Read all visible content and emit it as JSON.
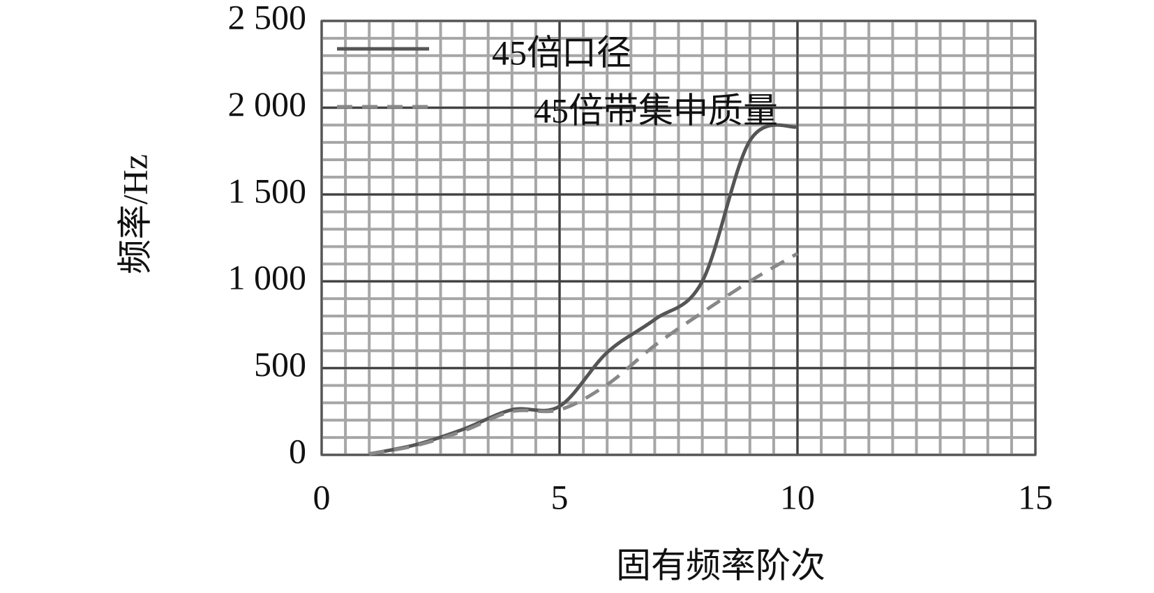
{
  "chart_data": {
    "type": "line",
    "x_label": "固有频率阶次",
    "y_label": "频率/Hz",
    "xlim": [
      0,
      15
    ],
    "xticks": [
      0,
      5,
      10,
      15
    ],
    "ylim": [
      0,
      2500
    ],
    "yticks": [
      0,
      500,
      {
        "value": 1000,
        "label": "1 000"
      },
      {
        "value": 1500,
        "label": "1 500"
      },
      {
        "value": 2000,
        "label": "2 000"
      },
      {
        "value": 2500,
        "label": "2 500"
      }
    ],
    "grid": true,
    "minor_grid": {
      "x": 0.5,
      "y": 100
    },
    "legend": "upper left",
    "x": [
      1,
      2,
      3,
      4,
      5,
      6,
      7,
      8,
      9,
      10
    ],
    "series": [
      {
        "name": "45倍口径",
        "color": "#555555",
        "dash": false,
        "values": [
          5,
          60,
          150,
          260,
          280,
          590,
          780,
          1000,
          1810,
          1890
        ]
      },
      {
        "name": "45倍带集中质量",
        "color": "#888888",
        "dash": true,
        "values": [
          5,
          55,
          140,
          250,
          260,
          405,
          630,
          820,
          1000,
          1160
        ]
      }
    ]
  }
}
